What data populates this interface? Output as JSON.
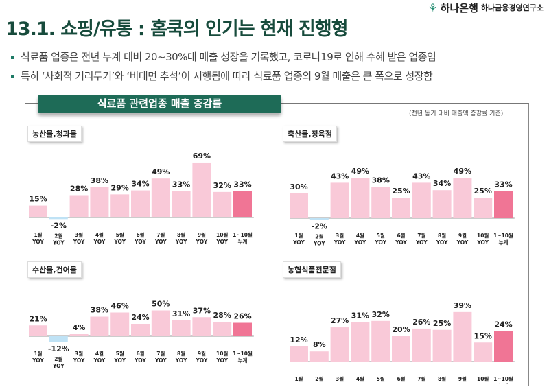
{
  "header": {
    "logo_bank": "하나은행",
    "logo_institute": "하나금융경영연구소",
    "title": "13.1. 쇼핑/유통 : 홈쿡의 인기는 현재 진행형"
  },
  "bullets": [
    "식료품 업종은 전년 누계 대비 20~30%대 매출 성장을 기록했고, 코로나19로 인해 수혜 받은 업종임",
    "특히 ‘사회적 거리두기’와 ‘비대면 추석’이 시행됨에 따라 식료품 업종의 9월 매출은 큰 폭으로 성장함"
  ],
  "section": {
    "title": "식료품 관련업종 매출 증감률",
    "note": "(전년 동기 대비 매출액 증감률 기준)"
  },
  "colors": {
    "bar": "#f9c9d8",
    "highlight": "#f07595",
    "negative": "#bfe2f5",
    "title": "#174b3c",
    "tab": "#1e6b57"
  },
  "chart_data": [
    {
      "type": "bar",
      "title": "농산물,청과물",
      "categories": [
        [
          "1월",
          "YOY"
        ],
        [
          "2월",
          "YOY"
        ],
        [
          "3월",
          "YOY"
        ],
        [
          "4월",
          "YOY"
        ],
        [
          "5월",
          "YOY"
        ],
        [
          "6월",
          "YOY"
        ],
        [
          "7월",
          "YOY"
        ],
        [
          "8월",
          "YOY"
        ],
        [
          "9월",
          "YOY"
        ],
        [
          "10월",
          "YOY"
        ],
        [
          "1~10월",
          "누계"
        ]
      ],
      "values": [
        15,
        -2,
        28,
        38,
        29,
        34,
        49,
        33,
        69,
        32,
        33
      ],
      "unit": "%"
    },
    {
      "type": "bar",
      "title": "축산물,정육점",
      "categories": [
        [
          "1월",
          "YOY"
        ],
        [
          "2월",
          "YOY"
        ],
        [
          "3월",
          "YOY"
        ],
        [
          "4월",
          "YOY"
        ],
        [
          "5월",
          "YOY"
        ],
        [
          "6월",
          "YOY"
        ],
        [
          "7월",
          "YOY"
        ],
        [
          "8월",
          "YOY"
        ],
        [
          "9월",
          "YOY"
        ],
        [
          "10월",
          "YOY"
        ],
        [
          "1~10월",
          "누계"
        ]
      ],
      "values": [
        30,
        -2,
        43,
        49,
        38,
        25,
        43,
        34,
        49,
        25,
        33
      ],
      "unit": "%"
    },
    {
      "type": "bar",
      "title": "수산물,건어물",
      "categories": [
        [
          "1월",
          "YOY"
        ],
        [
          "2월",
          "YOY"
        ],
        [
          "3월",
          "YOY"
        ],
        [
          "4월",
          "YOY"
        ],
        [
          "5월",
          "YOY"
        ],
        [
          "6월",
          "YOY"
        ],
        [
          "7월",
          "YOY"
        ],
        [
          "8월",
          "YOY"
        ],
        [
          "9월",
          "YOY"
        ],
        [
          "10월",
          "YOY"
        ],
        [
          "1~10월",
          "누계"
        ]
      ],
      "values": [
        21,
        -12,
        4,
        38,
        46,
        24,
        50,
        31,
        37,
        28,
        26
      ],
      "unit": "%"
    },
    {
      "type": "bar",
      "title": "농협식품전문점",
      "categories": [
        [
          "1월",
          "YOY"
        ],
        [
          "2월",
          "YOY"
        ],
        [
          "3월",
          "YOY"
        ],
        [
          "4월",
          "YOY"
        ],
        [
          "5월",
          "YOY"
        ],
        [
          "6월",
          "YOY"
        ],
        [
          "7월",
          "YOY"
        ],
        [
          "8월",
          "YOY"
        ],
        [
          "9월",
          "YOY"
        ],
        [
          "10월",
          "YOY"
        ],
        [
          "1~10월",
          "누계"
        ]
      ],
      "values": [
        12,
        8,
        27,
        31,
        32,
        20,
        26,
        25,
        39,
        15,
        24
      ],
      "unit": "%"
    }
  ]
}
